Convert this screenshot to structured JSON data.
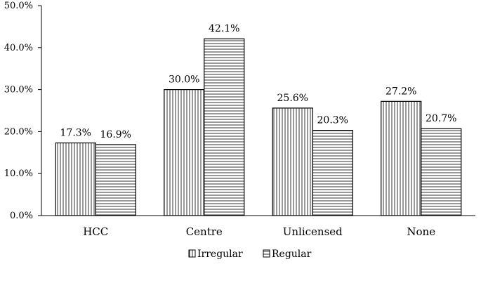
{
  "chart_data": {
    "type": "bar",
    "categories": [
      "HCC",
      "Centre",
      "Unlicensed",
      "None"
    ],
    "series": [
      {
        "name": "Irregular",
        "values": [
          17.3,
          30.0,
          25.6,
          27.2
        ],
        "labels": [
          "17.3%",
          "30.0%",
          "25.6%",
          "27.2%"
        ],
        "pattern": "vertical-lines"
      },
      {
        "name": "Regular",
        "values": [
          16.9,
          42.1,
          20.3,
          20.7
        ],
        "labels": [
          "16.9%",
          "42.1%",
          "20.3%",
          "20.7%"
        ],
        "pattern": "horizontal-lines"
      }
    ],
    "y_ticks": [
      "0.0%",
      "10.0%",
      "20.0%",
      "30.0%",
      "40.0%",
      "50.0%"
    ],
    "ylim": [
      0,
      50
    ],
    "grid": false,
    "legend_position": "bottom",
    "colors": {
      "stroke": "#000000",
      "fill": "#ffffff"
    }
  }
}
